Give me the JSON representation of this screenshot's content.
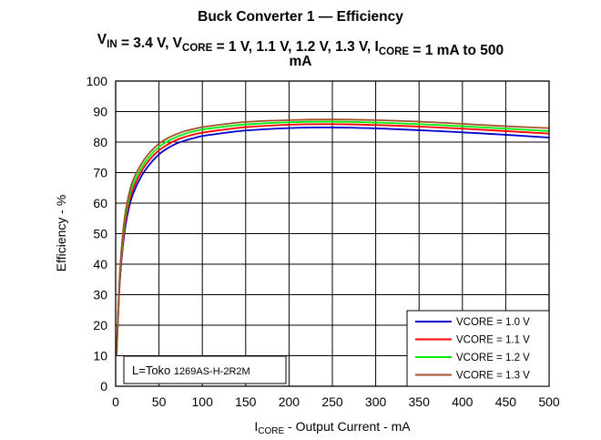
{
  "chart_data": {
    "type": "line",
    "title_line1": "Buck Converter 1 — Efficiency",
    "title_line2": {
      "parts": [
        {
          "text": "V",
          "sub": "IN"
        },
        {
          "text": " = 3.4 V, V",
          "sub": "CORE"
        },
        {
          "text": " = 1 V, 1.1 V, 1.2 V, 1.3 V, I",
          "sub": "CORE"
        },
        {
          "text": " = 1 mA to 500",
          "sub": ""
        }
      ]
    },
    "title_line3": "mA",
    "xlabel": {
      "prefix": "I",
      "sub": "CORE",
      "suffix": " - Output Current - mA"
    },
    "ylabel": "Efficiency - %",
    "xlim": [
      0,
      500
    ],
    "ylim": [
      0,
      100
    ],
    "xticks": [
      0,
      50,
      100,
      150,
      200,
      250,
      300,
      350,
      400,
      450,
      500
    ],
    "yticks": [
      0,
      10,
      20,
      30,
      40,
      50,
      60,
      70,
      80,
      90,
      100
    ],
    "grid": true,
    "legend_position": "bottom-right",
    "annotation": {
      "prefix": "L=Toko ",
      "part": "1269AS-H-2R2M"
    },
    "series": [
      {
        "name": "VCORE = 1.0 V",
        "color": "#0000cc",
        "x": [
          1,
          5,
          10,
          15,
          20,
          30,
          40,
          50,
          60,
          70,
          80,
          90,
          100,
          120,
          150,
          200,
          250,
          300,
          350,
          400,
          450,
          500
        ],
        "y": [
          10,
          35,
          50,
          58,
          63,
          69,
          73,
          76,
          78,
          79.5,
          80.5,
          81.3,
          82,
          82.8,
          83.8,
          84.6,
          84.8,
          84.5,
          83.9,
          83.2,
          82.4,
          81.5
        ]
      },
      {
        "name": "VCORE = 1.1 V",
        "color": "#ff0000",
        "x": [
          1,
          5,
          10,
          15,
          20,
          30,
          40,
          50,
          60,
          70,
          80,
          90,
          100,
          120,
          150,
          200,
          250,
          300,
          350,
          400,
          450,
          500
        ],
        "y": [
          10,
          36,
          51.5,
          59.5,
          64.5,
          70.5,
          74.5,
          77.3,
          79.2,
          80.7,
          81.7,
          82.5,
          83.1,
          83.9,
          84.9,
          85.7,
          85.9,
          85.6,
          85.1,
          84.4,
          83.6,
          82.8
        ]
      },
      {
        "name": "VCORE = 1.2 V",
        "color": "#00ee00",
        "x": [
          1,
          5,
          10,
          15,
          20,
          30,
          40,
          50,
          60,
          70,
          80,
          90,
          100,
          120,
          150,
          200,
          250,
          300,
          350,
          400,
          450,
          500
        ],
        "y": [
          10,
          37,
          53,
          61,
          66,
          71.7,
          75.6,
          78.4,
          80.3,
          81.7,
          82.7,
          83.5,
          84.1,
          84.9,
          85.8,
          86.5,
          86.7,
          86.4,
          85.9,
          85.2,
          84.4,
          83.6
        ]
      },
      {
        "name": "VCORE = 1.3 V",
        "color": "#a0522d",
        "x": [
          1,
          5,
          10,
          15,
          20,
          30,
          40,
          50,
          60,
          70,
          80,
          90,
          100,
          120,
          150,
          200,
          250,
          300,
          350,
          400,
          450,
          500
        ],
        "y": [
          10,
          38,
          54.5,
          62.5,
          67.5,
          73,
          76.8,
          79.5,
          81.3,
          82.6,
          83.6,
          84.3,
          84.9,
          85.7,
          86.6,
          87.2,
          87.4,
          87.2,
          86.7,
          86.0,
          85.2,
          84.6
        ]
      }
    ]
  }
}
